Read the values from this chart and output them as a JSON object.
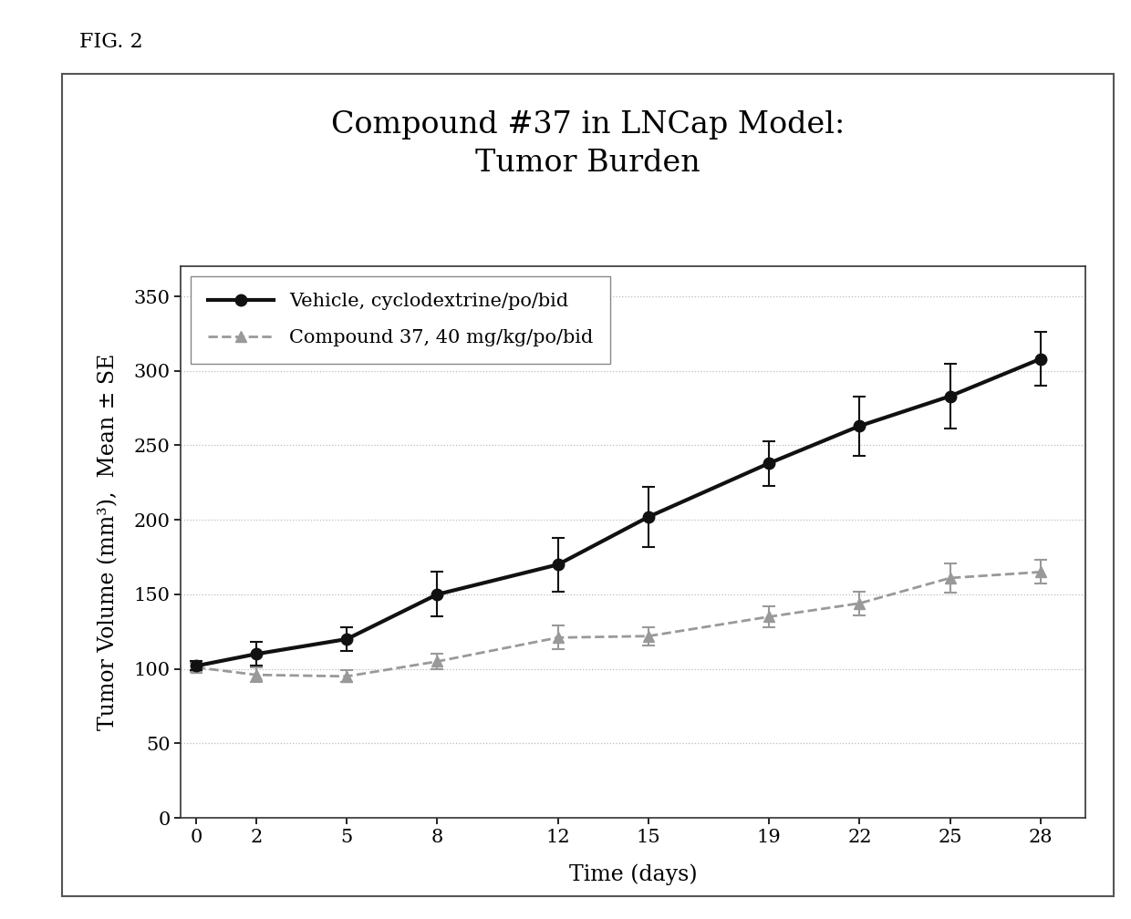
{
  "title": "Compound #37 in LNCap Model:\nTumor Burden",
  "xlabel": "Time (days)",
  "ylabel": "Tumor Volume (mm³),  Mean ± SE",
  "fig_label": "FIG. 2",
  "xlim": [
    -0.5,
    29.5
  ],
  "ylim": [
    0,
    370
  ],
  "yticks": [
    0,
    50,
    100,
    150,
    200,
    250,
    300,
    350
  ],
  "xticks": [
    0,
    2,
    5,
    8,
    12,
    15,
    19,
    22,
    25,
    28
  ],
  "vehicle": {
    "x": [
      0,
      2,
      5,
      8,
      12,
      15,
      19,
      22,
      25,
      28
    ],
    "y": [
      102,
      110,
      120,
      150,
      170,
      202,
      238,
      263,
      283,
      308
    ],
    "yerr": [
      3,
      8,
      8,
      15,
      18,
      20,
      15,
      20,
      22,
      18
    ],
    "label": "Vehicle, cyclodextrine/po/bid",
    "color": "#111111",
    "linewidth": 3.0,
    "linestyle": "-",
    "marker": "o",
    "markersize": 9
  },
  "compound": {
    "x": [
      0,
      2,
      5,
      8,
      12,
      15,
      19,
      22,
      25,
      28
    ],
    "y": [
      101,
      96,
      95,
      105,
      121,
      122,
      135,
      144,
      161,
      165
    ],
    "yerr": [
      3,
      5,
      4,
      5,
      8,
      6,
      7,
      8,
      10,
      8
    ],
    "label": "Compound 37, 40 mg/kg/po/bid",
    "color": "#999999",
    "linewidth": 2.0,
    "linestyle": "--",
    "marker": "^",
    "markersize": 9
  },
  "background_color": "#ffffff",
  "grid_color": "#bbbbbb",
  "title_fontsize": 24,
  "axis_label_fontsize": 17,
  "tick_fontsize": 15,
  "legend_fontsize": 15,
  "panel_border_color": "#555555",
  "fig_label_fontsize": 16
}
